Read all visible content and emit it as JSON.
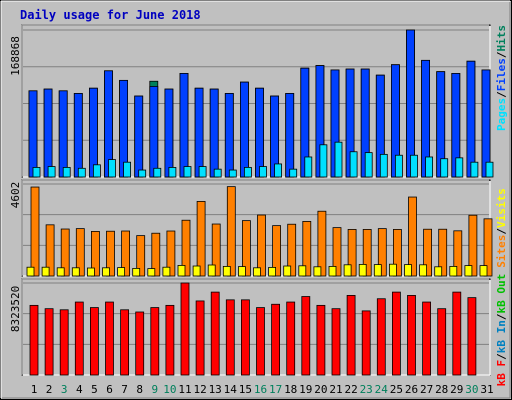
{
  "title": "Daily usage for June 2018",
  "colors": {
    "frame_bg": "#c0c0c0",
    "plot_bg": "#c0c0c0",
    "hits": "#00805c",
    "files": "#0040ff",
    "pages": "#00e0ff",
    "visits": "#ffff00",
    "sites": "#ff8000",
    "kbin": "#0080c0",
    "kbout": "#00c000",
    "kbf": "#ff0000",
    "title": "#0000c0",
    "day_normal": "#000000",
    "day_weekend": "#00805c"
  },
  "panels": {
    "top": {
      "max_label": "168868",
      "legend": [
        "Pages",
        "/",
        "Files",
        "/",
        "Hits"
      ]
    },
    "middle": {
      "max_label": "4602",
      "legend": [
        "Sites",
        "/",
        "Visits"
      ]
    },
    "bottom": {
      "max_label": "8323520",
      "legend": [
        "kB F",
        "/",
        "kB In",
        "/",
        "kB Out"
      ]
    }
  },
  "chart_data": [
    {
      "type": "bar",
      "panel": "top",
      "categories": [
        "1",
        "2",
        "3",
        "4",
        "5",
        "6",
        "7",
        "8",
        "9",
        "10",
        "11",
        "12",
        "13",
        "14",
        "15",
        "16",
        "17",
        "18",
        "19",
        "20",
        "21",
        "22",
        "23",
        "24",
        "25",
        "26",
        "27",
        "28",
        "29",
        "30",
        "31"
      ],
      "ylim": [
        0,
        168868
      ],
      "series": [
        {
          "name": "Hits",
          "values": [
            99000,
            101000,
            99000,
            96000,
            102000,
            122000,
            111000,
            93000,
            110000,
            101000,
            119000,
            102000,
            101000,
            96000,
            109000,
            102000,
            93000,
            96000,
            125000,
            128000,
            123000,
            124000,
            124000,
            117000,
            129000,
            168868,
            134000,
            121000,
            119000,
            133000,
            123000
          ]
        },
        {
          "name": "Files",
          "values": [
            99000,
            101000,
            99000,
            96000,
            102000,
            122000,
            111000,
            93000,
            104000,
            101000,
            119000,
            102000,
            101000,
            96000,
            109000,
            102000,
            93000,
            96000,
            125000,
            128000,
            123000,
            124000,
            124000,
            117000,
            129000,
            168868,
            134000,
            121000,
            119000,
            133000,
            123000
          ]
        },
        {
          "name": "Pages",
          "values": [
            11000,
            12000,
            11000,
            10000,
            14000,
            20000,
            17000,
            8000,
            10000,
            11000,
            12000,
            12000,
            9000,
            8000,
            11000,
            12000,
            15000,
            9000,
            23000,
            37000,
            40000,
            29000,
            28000,
            26000,
            25000,
            25000,
            23000,
            21000,
            22000,
            17000,
            17000
          ]
        }
      ]
    },
    {
      "type": "bar",
      "panel": "middle",
      "categories": [
        "1",
        "2",
        "3",
        "4",
        "5",
        "6",
        "7",
        "8",
        "9",
        "10",
        "11",
        "12",
        "13",
        "14",
        "15",
        "16",
        "17",
        "18",
        "19",
        "20",
        "21",
        "22",
        "23",
        "24",
        "25",
        "26",
        "27",
        "28",
        "29",
        "30",
        "31"
      ],
      "ylim": [
        0,
        4602
      ],
      "series": [
        {
          "name": "Visits",
          "values": [
            440,
            440,
            410,
            410,
            400,
            410,
            420,
            380,
            370,
            440,
            530,
            500,
            550,
            480,
            470,
            410,
            430,
            500,
            510,
            460,
            480,
            560,
            580,
            570,
            590,
            570,
            560,
            460,
            480,
            520,
            520
          ]
        },
        {
          "name": "Sites",
          "values": [
            4450,
            2560,
            2350,
            2370,
            2230,
            2240,
            2250,
            2020,
            2140,
            2250,
            2790,
            3730,
            2600,
            4470,
            2770,
            3050,
            2520,
            2590,
            2730,
            3240,
            2420,
            2330,
            2330,
            2370,
            2330,
            3950,
            2340,
            2340,
            2260,
            3040,
            2860
          ]
        }
      ]
    },
    {
      "type": "bar",
      "panel": "bottom",
      "categories": [
        "1",
        "2",
        "3",
        "4",
        "5",
        "6",
        "7",
        "8",
        "9",
        "10",
        "11",
        "12",
        "13",
        "14",
        "15",
        "16",
        "17",
        "18",
        "19",
        "20",
        "21",
        "22",
        "23",
        "24",
        "25",
        "26",
        "27",
        "28",
        "29",
        "30",
        "31"
      ],
      "ylim": [
        0,
        8323520
      ],
      "series": [
        {
          "name": "kB F",
          "values": [
            6300000,
            6000000,
            5900000,
            6600000,
            6100000,
            6600000,
            5900000,
            5700000,
            6100000,
            6300000,
            8323520,
            6700000,
            7500000,
            6800000,
            6800000,
            6100000,
            6400000,
            6600000,
            7100000,
            6300000,
            6000000,
            7200000,
            5800000,
            6900000,
            7500000,
            7200000,
            6600000,
            6000000,
            7500000,
            7000000,
            0
          ]
        }
      ]
    }
  ]
}
